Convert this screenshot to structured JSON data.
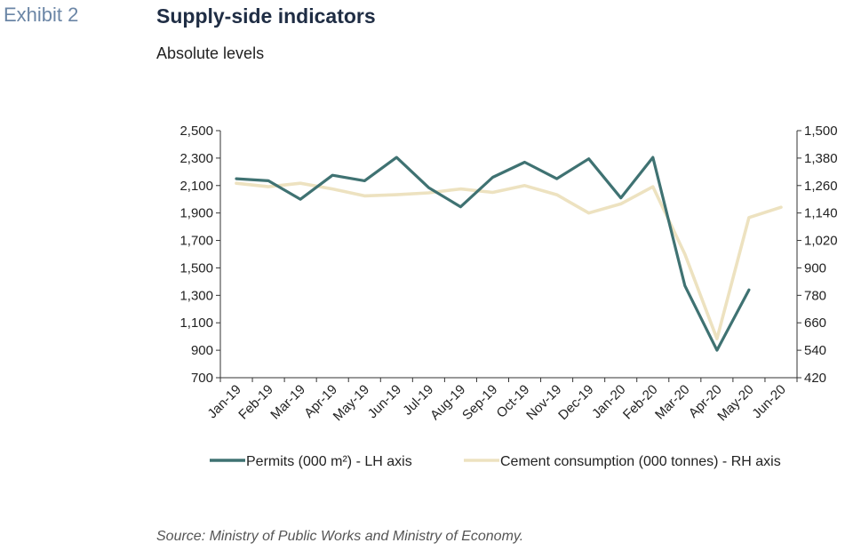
{
  "header": {
    "exhibit": "Exhibit 2",
    "title": "Supply-side indicators",
    "subtitle": "Absolute levels"
  },
  "footer": {
    "source": "Source: Ministry of Public Works and Ministry of Economy."
  },
  "colors": {
    "permits": "#3f7272",
    "cement": "#ede2c0",
    "axis": "#333333"
  },
  "chart_data": {
    "type": "line",
    "categories": [
      "Jan-19",
      "Feb-19",
      "Mar-19",
      "Apr-19",
      "May-19",
      "Jun-19",
      "Jul-19",
      "Aug-19",
      "Sep-19",
      "Oct-19",
      "Nov-19",
      "Dec-19",
      "Jan-20",
      "Feb-20",
      "Mar-20",
      "Apr-20",
      "May-20",
      "Jun-20"
    ],
    "series": [
      {
        "name": "Permits (000 m²) - LH axis",
        "axis": "left",
        "values": [
          2150,
          2135,
          2000,
          2175,
          2135,
          2305,
          2085,
          1945,
          2160,
          2270,
          2150,
          2295,
          2010,
          2305,
          1370,
          900,
          1340,
          null
        ]
      },
      {
        "name": "Cement consumption (000 tonnes) - RH axis",
        "axis": "right",
        "values": [
          1270,
          1255,
          1270,
          1245,
          1215,
          1220,
          1228,
          1245,
          1230,
          1260,
          1220,
          1140,
          1180,
          1255,
          960,
          590,
          1120,
          1165
        ]
      }
    ],
    "left_axis": {
      "ylim": [
        700,
        2500
      ],
      "ticks": [
        "700",
        "900",
        "1,100",
        "1,300",
        "1,500",
        "1,700",
        "1,900",
        "2,100",
        "2,300",
        "2,500"
      ]
    },
    "right_axis": {
      "ylim": [
        420,
        1500
      ],
      "ticks": [
        "420",
        "540",
        "660",
        "780",
        "900",
        "1,020",
        "1,140",
        "1,260",
        "1,380",
        "1,500"
      ]
    },
    "grid": false,
    "legend": "bottom"
  }
}
